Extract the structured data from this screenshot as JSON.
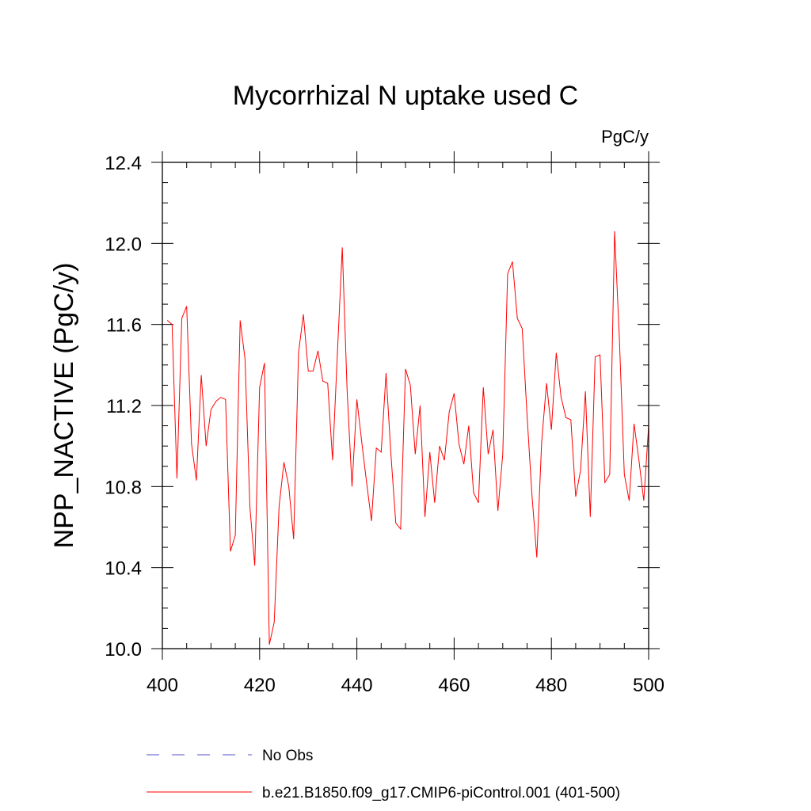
{
  "chart_data": {
    "type": "line",
    "title": "Mycorrhizal N uptake used C",
    "units": "PgC/y",
    "xlabel": "",
    "ylabel": "NPP_NACTIVE  (PgC/y)",
    "xlim": [
      400,
      500
    ],
    "ylim": [
      10.0,
      12.4
    ],
    "x_ticks": [
      400,
      420,
      440,
      460,
      480,
      500
    ],
    "y_ticks": [
      10.0,
      10.4,
      10.8,
      11.2,
      11.6,
      12.0,
      12.4
    ],
    "x_tick_labels": [
      "400",
      "420",
      "440",
      "460",
      "480",
      "500"
    ],
    "y_tick_labels": [
      "10.0",
      "10.4",
      "10.8",
      "11.2",
      "11.6",
      "12.0",
      "12.4"
    ],
    "series": [
      {
        "name": "b.e21.B1850.f09_g17.CMIP6-piControl.001 (401-500)",
        "color": "#ff0000",
        "style": "solid",
        "x": [
          401,
          402,
          403,
          404,
          405,
          406,
          407,
          408,
          409,
          410,
          411,
          412,
          413,
          414,
          415,
          416,
          417,
          418,
          419,
          420,
          421,
          422,
          423,
          424,
          425,
          426,
          427,
          428,
          429,
          430,
          431,
          432,
          433,
          434,
          435,
          436,
          437,
          438,
          439,
          440,
          441,
          442,
          443,
          444,
          445,
          446,
          447,
          448,
          449,
          450,
          451,
          452,
          453,
          454,
          455,
          456,
          457,
          458,
          459,
          460,
          461,
          462,
          463,
          464,
          465,
          466,
          467,
          468,
          469,
          470,
          471,
          472,
          473,
          474,
          475,
          476,
          477,
          478,
          479,
          480,
          481,
          482,
          483,
          484,
          485,
          486,
          487,
          488,
          489,
          490,
          491,
          492,
          493,
          494,
          495,
          496,
          497,
          498,
          499,
          500
        ],
        "values": [
          11.62,
          11.6,
          10.84,
          11.63,
          11.69,
          11.01,
          10.83,
          11.35,
          11.0,
          11.18,
          11.22,
          11.24,
          11.23,
          10.48,
          10.56,
          11.62,
          11.43,
          10.7,
          10.41,
          11.29,
          11.41,
          10.02,
          10.13,
          10.7,
          10.92,
          10.8,
          10.54,
          11.46,
          11.65,
          11.37,
          11.37,
          11.47,
          11.32,
          11.31,
          10.93,
          11.46,
          11.98,
          11.27,
          10.8,
          11.23,
          11.02,
          10.82,
          10.63,
          10.99,
          10.97,
          11.36,
          10.96,
          10.62,
          10.59,
          11.38,
          11.3,
          10.96,
          11.2,
          10.65,
          10.97,
          10.72,
          11.0,
          10.93,
          11.17,
          11.26,
          11.01,
          10.91,
          11.1,
          10.77,
          10.72,
          11.29,
          10.96,
          11.08,
          10.68,
          10.96,
          11.85,
          11.91,
          11.63,
          11.58,
          11.15,
          10.76,
          10.45,
          11.02,
          11.31,
          11.08,
          11.46,
          11.24,
          11.14,
          11.13,
          10.75,
          10.88,
          11.27,
          10.65,
          11.44,
          11.45,
          10.82,
          10.86,
          12.06,
          11.52,
          10.86,
          10.73,
          11.11,
          10.93,
          10.73,
          11.1
        ]
      }
    ],
    "legend": [
      {
        "label": "No Obs",
        "color": "#5050d0",
        "style": "dashed"
      },
      {
        "label": "b.e21.B1850.f09_g17.CMIP6-piControl.001 (401-500)",
        "color": "#ff0000",
        "style": "solid"
      }
    ]
  }
}
